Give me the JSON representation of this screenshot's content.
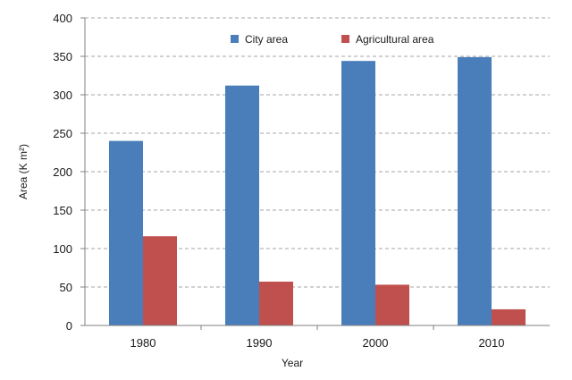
{
  "chart_data": {
    "type": "bar",
    "title": "",
    "xlabel": "Year",
    "ylabel": "Area (K m²)",
    "categories": [
      "1980",
      "1990",
      "2000",
      "2010"
    ],
    "series": [
      {
        "name": "City area",
        "color": "#4A7EBB",
        "values": [
          240,
          312,
          344,
          349
        ]
      },
      {
        "name": "Agricultural area",
        "color": "#C0504D",
        "values": [
          116,
          57,
          53,
          21
        ]
      }
    ],
    "ylim": [
      0,
      400
    ],
    "yticks": [
      0,
      50,
      100,
      150,
      200,
      250,
      300,
      350,
      400
    ],
    "grid": true,
    "legend_position": "top-right"
  }
}
